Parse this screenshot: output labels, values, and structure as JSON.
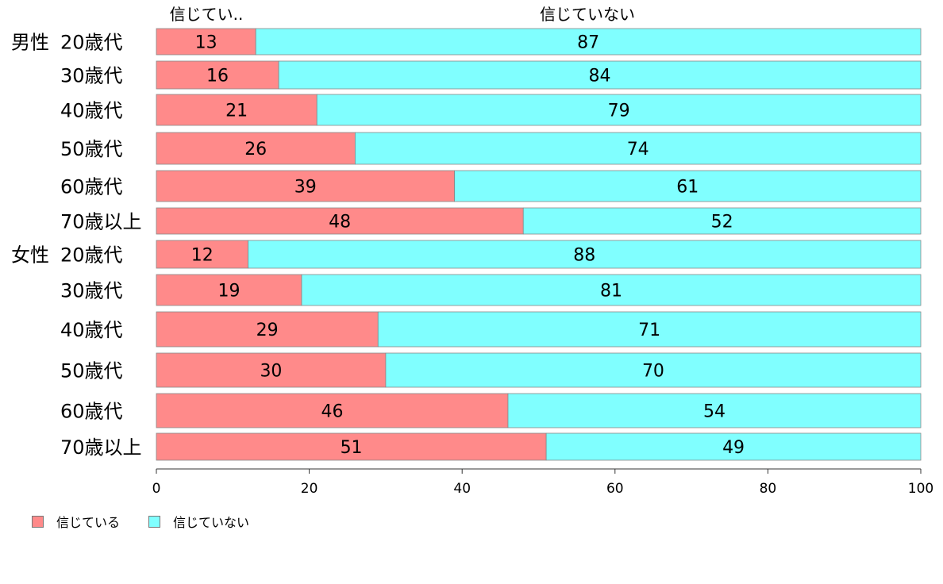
{
  "chart_data": {
    "type": "bar",
    "orientation": "horizontal",
    "stacked": true,
    "column_headers": [
      "信じてい..",
      "信じていない"
    ],
    "groups": [
      {
        "label": "男性",
        "categories": [
          "20歳代",
          "30歳代",
          "40歳代",
          "50歳代",
          "60歳代",
          "70歳以上"
        ]
      },
      {
        "label": "女性",
        "categories": [
          "20歳代",
          "30歳代",
          "40歳代",
          "50歳代",
          "60歳代",
          "70歳以上"
        ]
      }
    ],
    "series": [
      {
        "name": "信じている",
        "color": "#ff8a8a",
        "values": [
          13,
          16,
          21,
          26,
          39,
          48,
          12,
          19,
          29,
          30,
          46,
          51
        ]
      },
      {
        "name": "信じていない",
        "color": "#80ffff",
        "values": [
          87,
          84,
          79,
          74,
          61,
          52,
          88,
          81,
          71,
          70,
          54,
          49
        ]
      }
    ],
    "xlim": [
      0,
      100
    ],
    "xticks": [
      "0",
      "20",
      "40",
      "60",
      "80",
      "100"
    ],
    "legend_position": "bottom-left",
    "grid": false
  }
}
